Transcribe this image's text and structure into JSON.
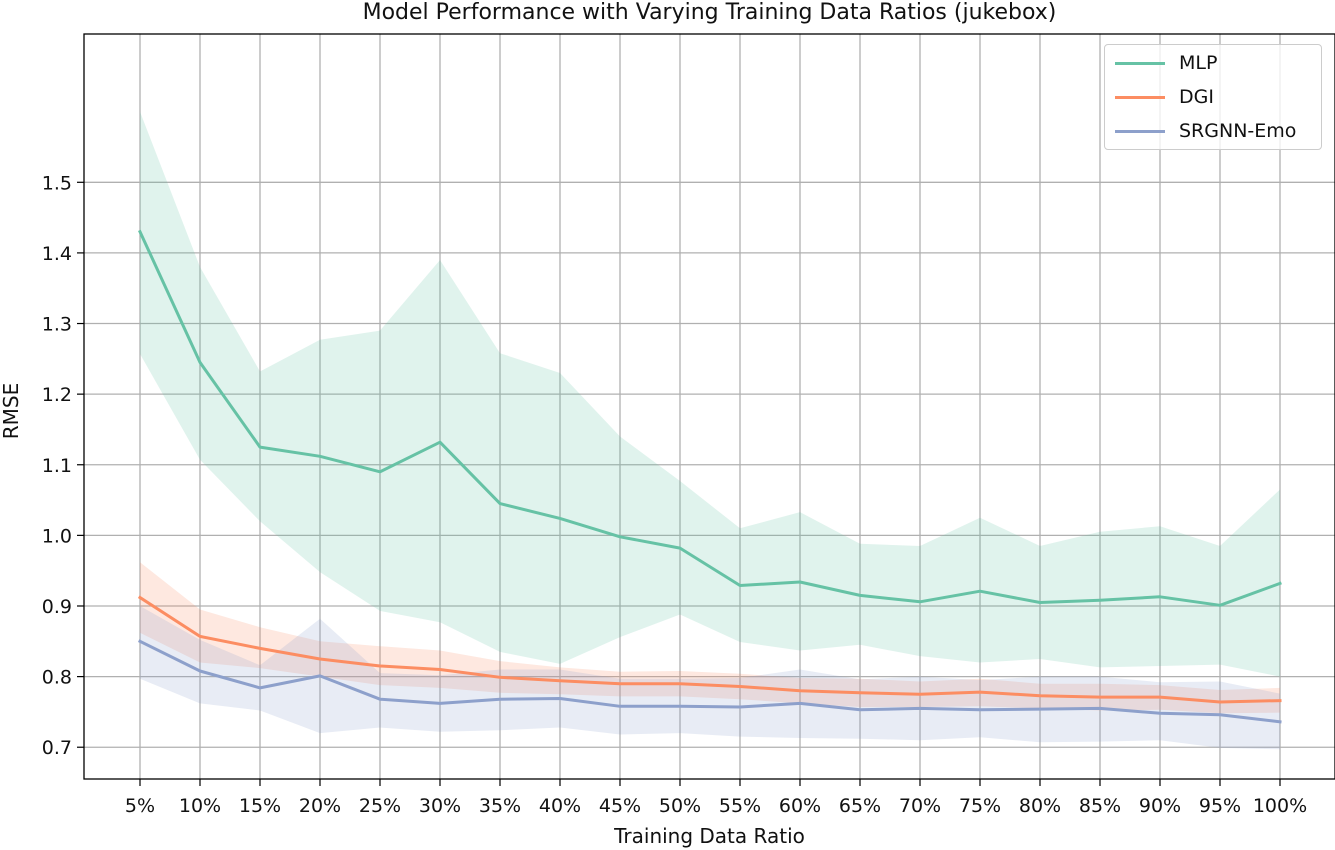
{
  "chart_data": {
    "type": "line",
    "title": "Model Performance with Varying Training Data Ratios (jukebox)",
    "xlabel": "Training Data Ratio",
    "ylabel": "RMSE",
    "categories": [
      "5%",
      "10%",
      "15%",
      "20%",
      "25%",
      "30%",
      "35%",
      "40%",
      "45%",
      "50%",
      "55%",
      "60%",
      "65%",
      "70%",
      "75%",
      "80%",
      "85%",
      "90%",
      "95%",
      "100%"
    ],
    "ylim": [
      0.655,
      1.71
    ],
    "yticks": [
      "0.7",
      "0.8",
      "0.9",
      "1.0",
      "1.1",
      "1.2",
      "1.3",
      "1.4",
      "1.5"
    ],
    "ytick_values": [
      0.7,
      0.8,
      0.9,
      1.0,
      1.1,
      1.2,
      1.3,
      1.4,
      1.5
    ],
    "grid": true,
    "legend_position": "top-right",
    "series": [
      {
        "name": "MLP",
        "color": "#66c2a5",
        "values": [
          1.43,
          1.245,
          1.125,
          1.112,
          1.09,
          1.132,
          1.045,
          1.024,
          0.998,
          0.982,
          0.929,
          0.934,
          0.915,
          0.906,
          0.921,
          0.905,
          0.908,
          0.913,
          0.901,
          0.932
        ],
        "upper": [
          1.6,
          1.38,
          1.232,
          1.277,
          1.29,
          1.39,
          1.258,
          1.23,
          1.14,
          1.077,
          1.01,
          1.033,
          0.988,
          0.985,
          1.025,
          0.985,
          1.005,
          1.013,
          0.985,
          1.065
        ],
        "lower": [
          1.257,
          1.107,
          1.02,
          0.948,
          0.893,
          0.877,
          0.835,
          0.818,
          0.856,
          0.888,
          0.849,
          0.837,
          0.845,
          0.829,
          0.82,
          0.825,
          0.813,
          0.815,
          0.817,
          0.8
        ]
      },
      {
        "name": "DGI",
        "color": "#fc8d62",
        "values": [
          0.912,
          0.857,
          0.84,
          0.825,
          0.815,
          0.81,
          0.799,
          0.794,
          0.79,
          0.79,
          0.786,
          0.78,
          0.777,
          0.775,
          0.778,
          0.773,
          0.771,
          0.771,
          0.764,
          0.766
        ],
        "upper": [
          0.962,
          0.895,
          0.87,
          0.85,
          0.843,
          0.837,
          0.822,
          0.813,
          0.807,
          0.808,
          0.804,
          0.798,
          0.797,
          0.793,
          0.797,
          0.79,
          0.79,
          0.788,
          0.781,
          0.784
        ],
        "lower": [
          0.862,
          0.82,
          0.812,
          0.8,
          0.788,
          0.784,
          0.777,
          0.775,
          0.772,
          0.772,
          0.768,
          0.762,
          0.757,
          0.757,
          0.758,
          0.755,
          0.752,
          0.753,
          0.748,
          0.749
        ]
      },
      {
        "name": "SRGNN-Emo",
        "color": "#8da0cb",
        "values": [
          0.85,
          0.808,
          0.784,
          0.801,
          0.768,
          0.762,
          0.768,
          0.769,
          0.758,
          0.758,
          0.757,
          0.762,
          0.753,
          0.755,
          0.753,
          0.754,
          0.755,
          0.748,
          0.746,
          0.736
        ],
        "upper": [
          0.9,
          0.852,
          0.816,
          0.882,
          0.805,
          0.802,
          0.81,
          0.81,
          0.797,
          0.797,
          0.798,
          0.81,
          0.796,
          0.8,
          0.795,
          0.8,
          0.8,
          0.792,
          0.793,
          0.776
        ],
        "lower": [
          0.797,
          0.762,
          0.752,
          0.72,
          0.728,
          0.722,
          0.724,
          0.728,
          0.718,
          0.72,
          0.715,
          0.713,
          0.712,
          0.71,
          0.714,
          0.707,
          0.708,
          0.71,
          0.699,
          0.697
        ]
      }
    ]
  }
}
